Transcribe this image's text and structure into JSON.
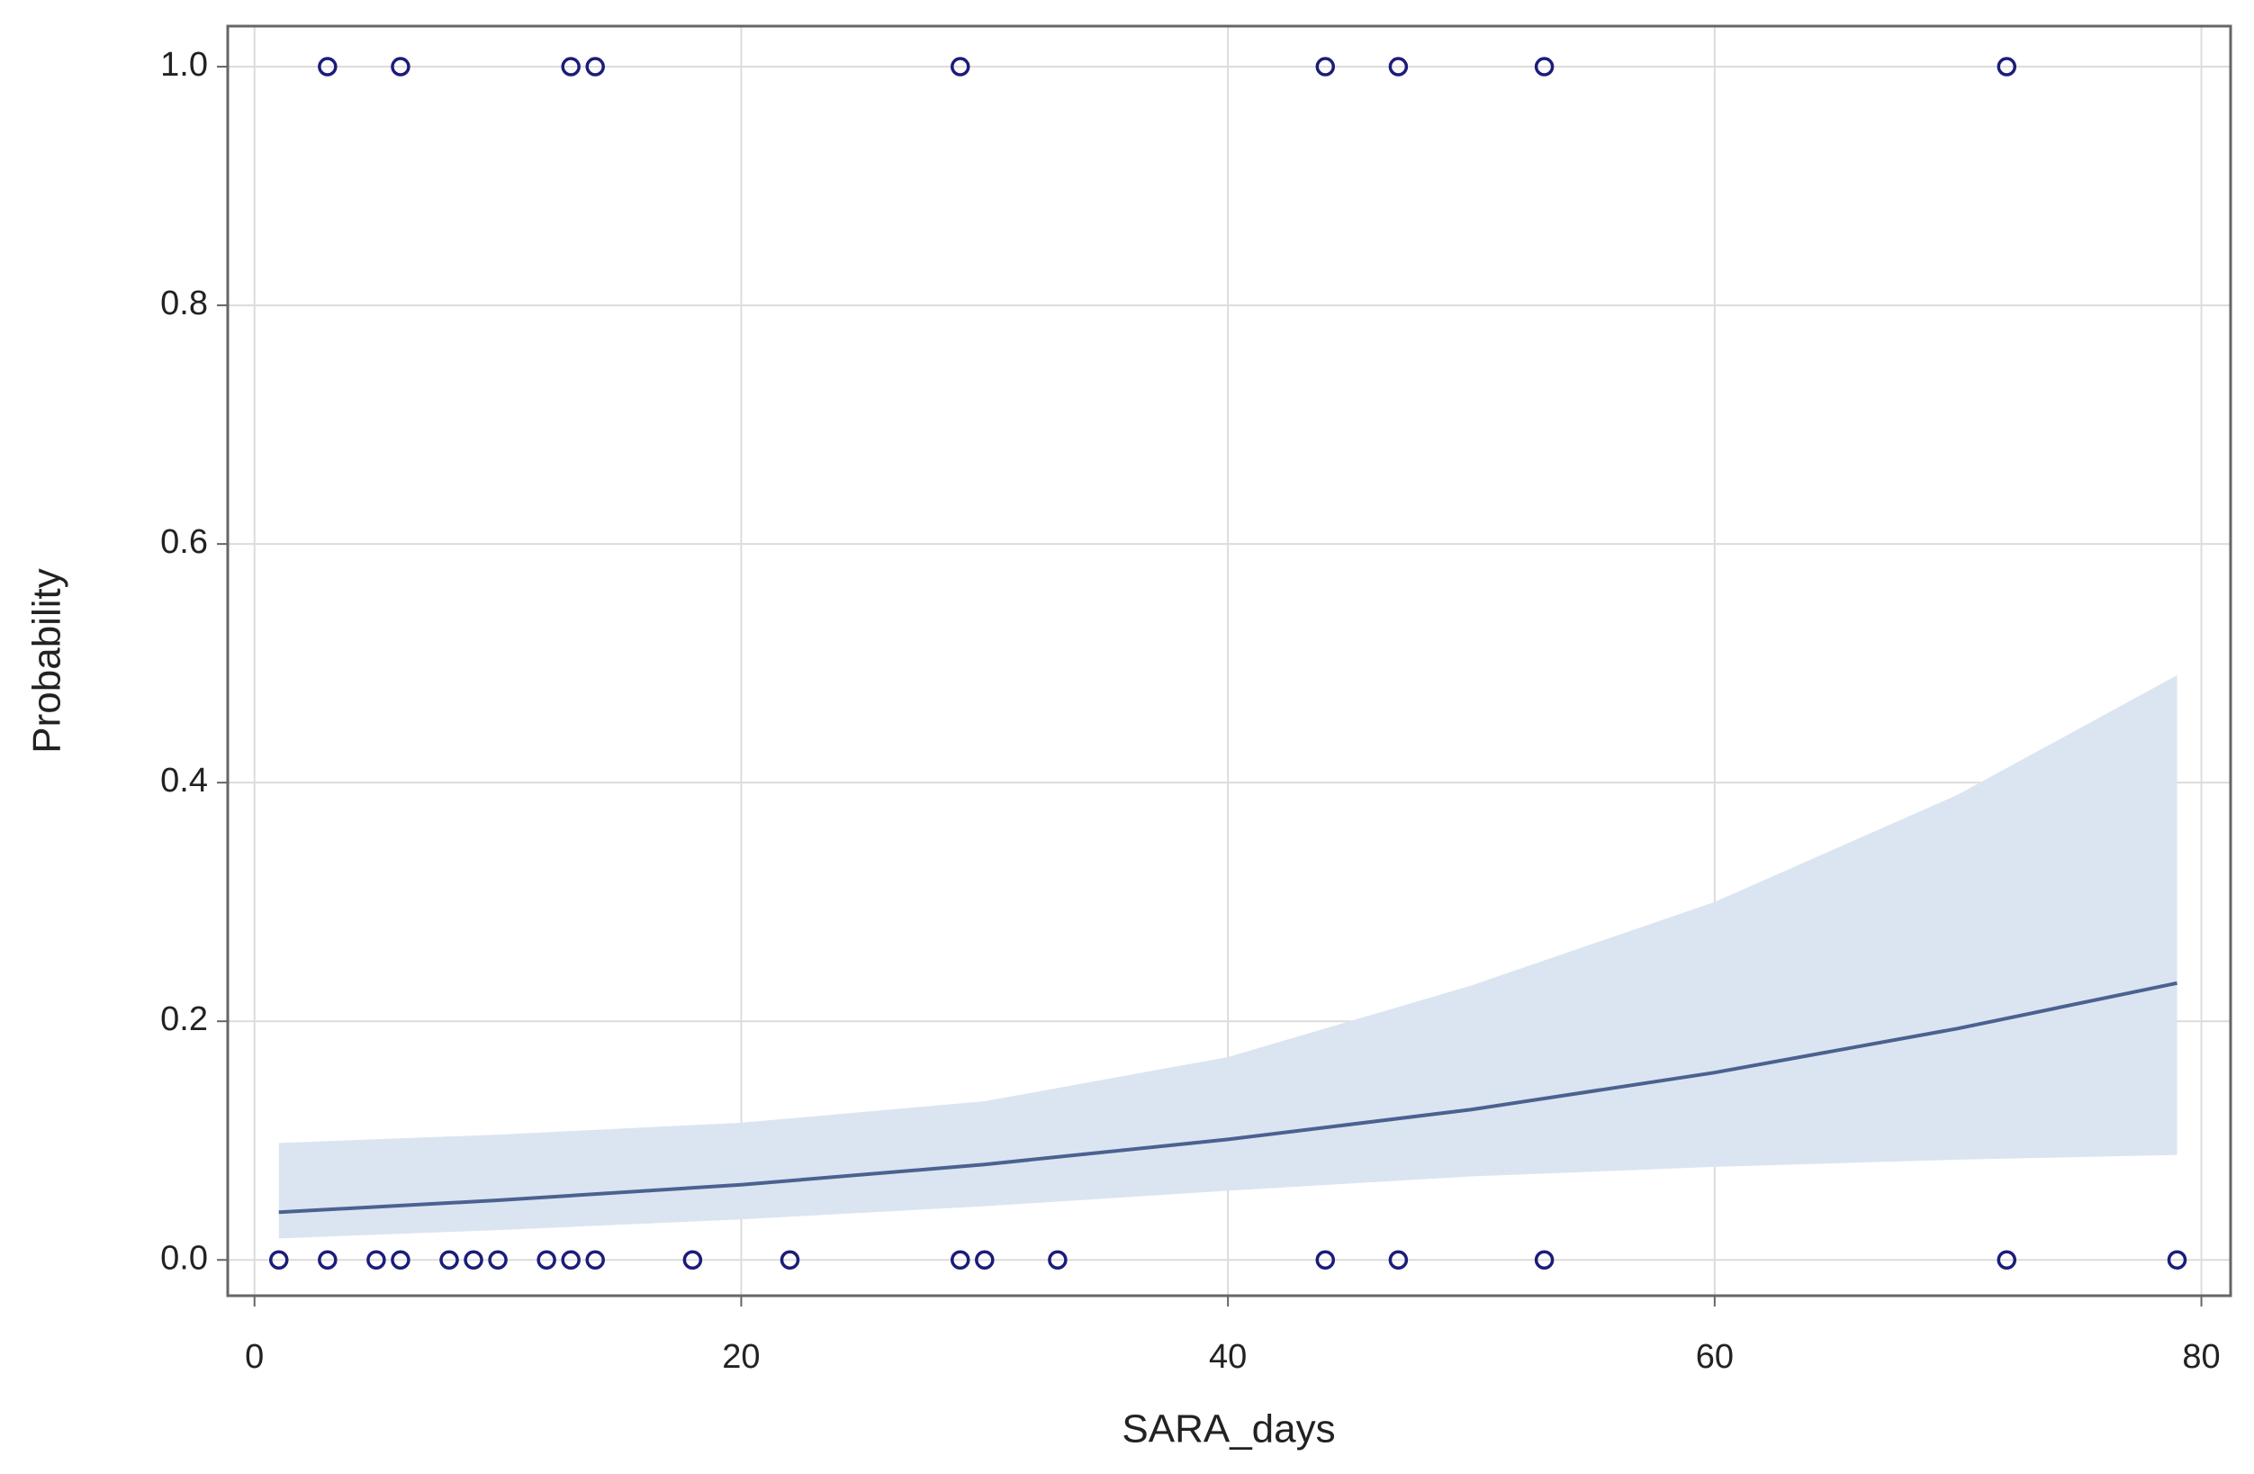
{
  "chart_data": {
    "type": "scatter",
    "x_label": "SARA_days",
    "y_label": "Probability",
    "points": {
      "color": "#1c1c7a",
      "x": [
        3,
        6,
        13,
        14,
        29,
        44,
        47,
        53,
        72,
        1,
        3,
        5,
        6,
        8,
        9,
        10,
        12,
        13,
        14,
        18,
        22,
        29,
        30,
        33,
        44,
        47,
        53,
        72,
        79
      ],
      "y": [
        1,
        1,
        1,
        1,
        1,
        1,
        1,
        1,
        1,
        0,
        0,
        0,
        0,
        0,
        0,
        0,
        0,
        0,
        0,
        0,
        0,
        0,
        0,
        0,
        0,
        0,
        0,
        0,
        0
      ]
    },
    "fit": {
      "color": "#4a6290",
      "band_color": "#dbe5f1",
      "x": [
        1,
        10,
        20,
        30,
        40,
        50,
        60,
        70,
        79
      ],
      "y": [
        0.04,
        0.05,
        0.063,
        0.08,
        0.101,
        0.126,
        0.157,
        0.194,
        0.232
      ],
      "upper": [
        0.098,
        0.105,
        0.115,
        0.133,
        0.17,
        0.23,
        0.3,
        0.39,
        0.49
      ],
      "lower": [
        0.018,
        0.025,
        0.034,
        0.045,
        0.058,
        0.07,
        0.078,
        0.084,
        0.088
      ]
    },
    "xlim": [
      -1.1,
      81.2
    ],
    "ylim": [
      -0.03,
      1.034
    ],
    "xticks": [
      0,
      20,
      40,
      60,
      80
    ],
    "yticks": [
      {
        "value": 0,
        "label": "0.0"
      },
      {
        "value": 0.2,
        "label": "0.2"
      },
      {
        "value": 0.4,
        "label": "0.4"
      },
      {
        "value": 0.6,
        "label": "0.6"
      },
      {
        "value": 0.8,
        "label": "0.8"
      },
      {
        "value": 1,
        "label": "1.0"
      }
    ],
    "grid": true
  }
}
